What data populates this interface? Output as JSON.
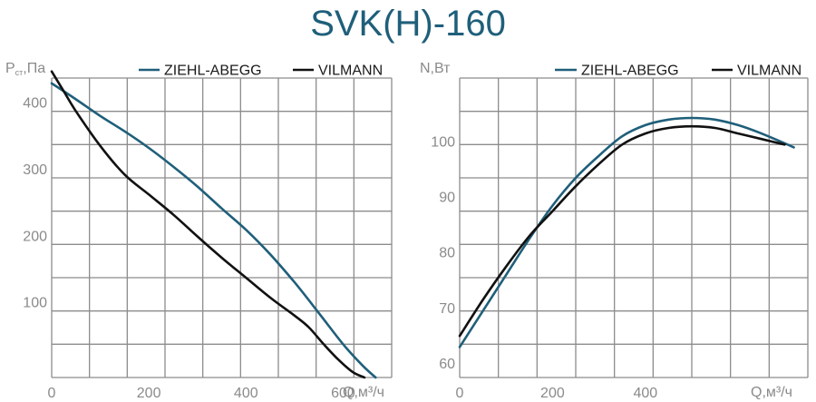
{
  "title": "SVK(H)-160",
  "colors": {
    "ziehl": "#1f5f7a",
    "vilmann": "#111111",
    "grid": "#8c8c8c",
    "text": "#8a8a8a"
  },
  "chart_data": [
    {
      "type": "line",
      "ylabel": "Pст,Па",
      "ylabel_main": "P",
      "ylabel_sub": "ст",
      "ylabel_unit": ",Па",
      "xlabel": "Q,м³/ч",
      "xlim": [
        0,
        700
      ],
      "ylim": [
        0,
        450
      ],
      "xticks": [
        0,
        200,
        400,
        600
      ],
      "yticks": [
        100,
        200,
        300,
        400
      ],
      "grid": true,
      "legend": "top-right",
      "series": [
        {
          "name": "ZIEHL-ABEGG",
          "color": "#1f5f7a",
          "x": [
            0,
            50,
            100,
            150,
            200,
            250,
            300,
            350,
            400,
            450,
            500,
            550,
            600,
            640,
            667
          ],
          "y": [
            442,
            418,
            393,
            370,
            345,
            317,
            287,
            254,
            222,
            185,
            143,
            97,
            50,
            18,
            0
          ]
        },
        {
          "name": "VILMANN",
          "color": "#111111",
          "x": [
            0,
            25,
            50,
            100,
            150,
            200,
            250,
            300,
            350,
            400,
            450,
            500,
            530,
            560,
            590,
            620,
            644
          ],
          "y": [
            460,
            430,
            400,
            348,
            305,
            275,
            245,
            212,
            180,
            150,
            120,
            93,
            75,
            50,
            27,
            8,
            0
          ]
        }
      ]
    },
    {
      "type": "line",
      "ylabel": "N,Вт",
      "xlabel": "Q,м³/ч",
      "xlim": [
        0,
        750
      ],
      "ylim": [
        59,
        113
      ],
      "xticks": [
        0,
        200,
        400
      ],
      "yticks": [
        60,
        70,
        80,
        90,
        100
      ],
      "grid": true,
      "legend": "top-right",
      "series": [
        {
          "name": "ZIEHL-ABEGG",
          "color": "#1f5f7a",
          "x": [
            0,
            50,
            100,
            150,
            200,
            250,
            300,
            350,
            400,
            450,
            500,
            550,
            600,
            650,
            720
          ],
          "y": [
            64.5,
            71,
            77.5,
            84,
            90,
            95,
            99,
            102.5,
            104.5,
            105.5,
            105.8,
            105.5,
            104.5,
            103,
            100.5
          ]
        },
        {
          "name": "VILMANN",
          "color": "#111111",
          "x": [
            0,
            50,
            100,
            150,
            200,
            250,
            300,
            350,
            400,
            450,
            500,
            550,
            600,
            650,
            700
          ],
          "y": [
            66.5,
            73,
            79,
            84.5,
            89,
            93.5,
            97.5,
            101,
            103,
            104,
            104.3,
            104,
            103,
            102,
            101
          ]
        }
      ]
    }
  ]
}
